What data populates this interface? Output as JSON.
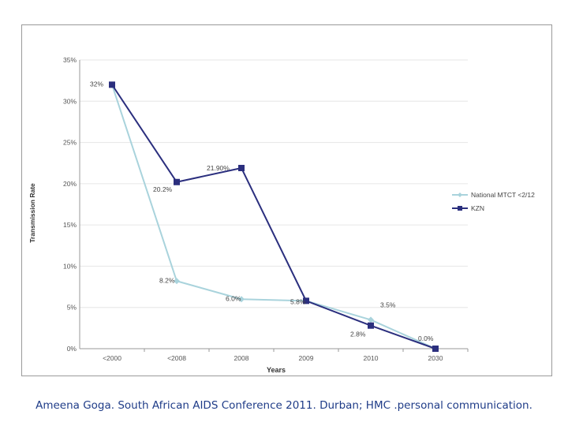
{
  "chart_data": {
    "type": "line",
    "categories": [
      "<2000",
      "<2008",
      "2008",
      "2009",
      "2010",
      "2030"
    ],
    "xlabel": "Years",
    "ylabel": "Transmission Rate",
    "ylim": [
      0,
      35
    ],
    "y_ticks": [
      "0%",
      "5%",
      "10%",
      "15%",
      "20%",
      "25%",
      "30%",
      "35%"
    ],
    "grid": true,
    "legend_position": "right",
    "series": [
      {
        "name": "National MTCT <2/12",
        "color": "#a9d3dc",
        "marker": "diamond",
        "values": [
          32,
          8.2,
          6.0,
          5.8,
          3.5,
          0.0
        ],
        "labels": [
          "",
          "8.2%",
          "6.0%",
          "5.8%",
          "3.5%",
          "0.0%"
        ]
      },
      {
        "name": "KZN",
        "color": "#2b2f7e",
        "marker": "square",
        "values": [
          32,
          20.2,
          21.9,
          5.8,
          2.8,
          0.0
        ],
        "labels": [
          "32%",
          "20.2%",
          "21.90%",
          "",
          "2.8%",
          ""
        ]
      }
    ]
  },
  "caption": "Ameena Goga.  South African AIDS Conference 2011.  Durban; HMC .personal communication."
}
